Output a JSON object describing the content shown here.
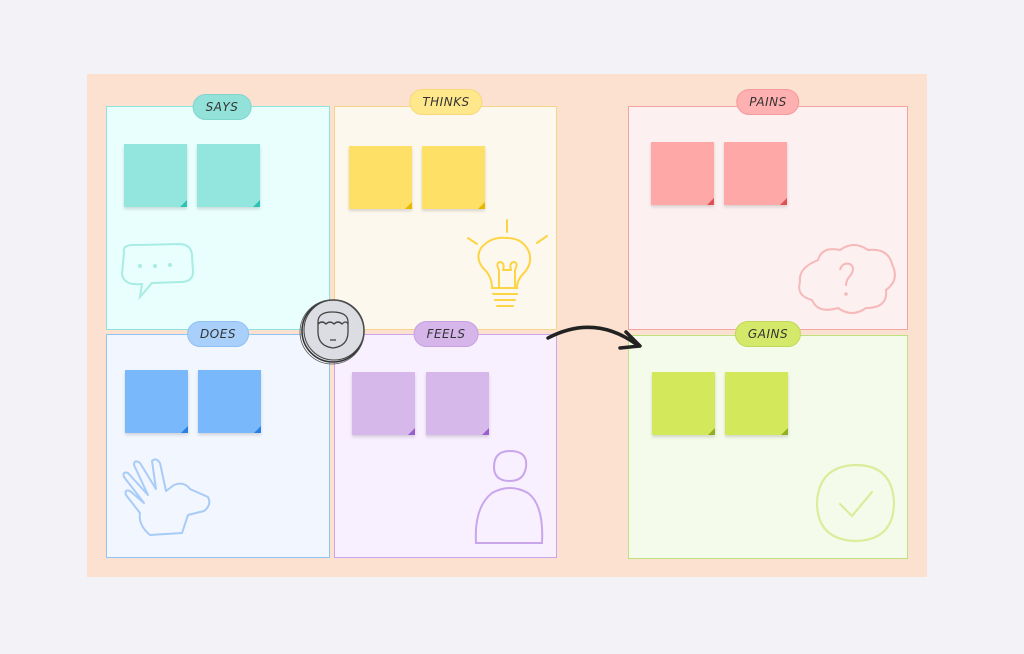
{
  "quadrants": {
    "says": {
      "label": "SAYS",
      "border": "#8ee3da",
      "bg": "#e9fffd",
      "sticky": "#92e6de",
      "fold": "#2cc3b4",
      "icon": "speech-bubble-icon"
    },
    "thinks": {
      "label": "THINKS",
      "border": "#f8d48a",
      "bg": "#fdf8ee",
      "sticky": "#ffe066",
      "fold": "#e6b800",
      "icon": "lightbulb-icon"
    },
    "does": {
      "label": "DOES",
      "border": "#8fc4f5",
      "bg": "#f2f6fe",
      "sticky": "#78b8fb",
      "fold": "#2a7fe0",
      "icon": "hand-icon"
    },
    "feels": {
      "label": "FEELS",
      "border": "#c9a6ec",
      "bg": "#f8efff",
      "sticky": "#d6b9ea",
      "fold": "#9a5ccf",
      "icon": "person-icon"
    },
    "pains": {
      "label": "PAINS",
      "border": "#f4a3a3",
      "bg": "#fdf0f0",
      "sticky": "#ffa8a8",
      "fold": "#e05050",
      "icon": "question-cloud-icon"
    },
    "gains": {
      "label": "GAINS",
      "border": "#bde17c",
      "bg": "#f5fbea",
      "sticky": "#d4e85c",
      "fold": "#8fb020",
      "icon": "checkmark-circle-icon"
    }
  },
  "board_color": "#fce1d1",
  "avatar": {
    "icon": "user-face-icon"
  },
  "connector": {
    "icon": "curved-arrow-icon"
  }
}
